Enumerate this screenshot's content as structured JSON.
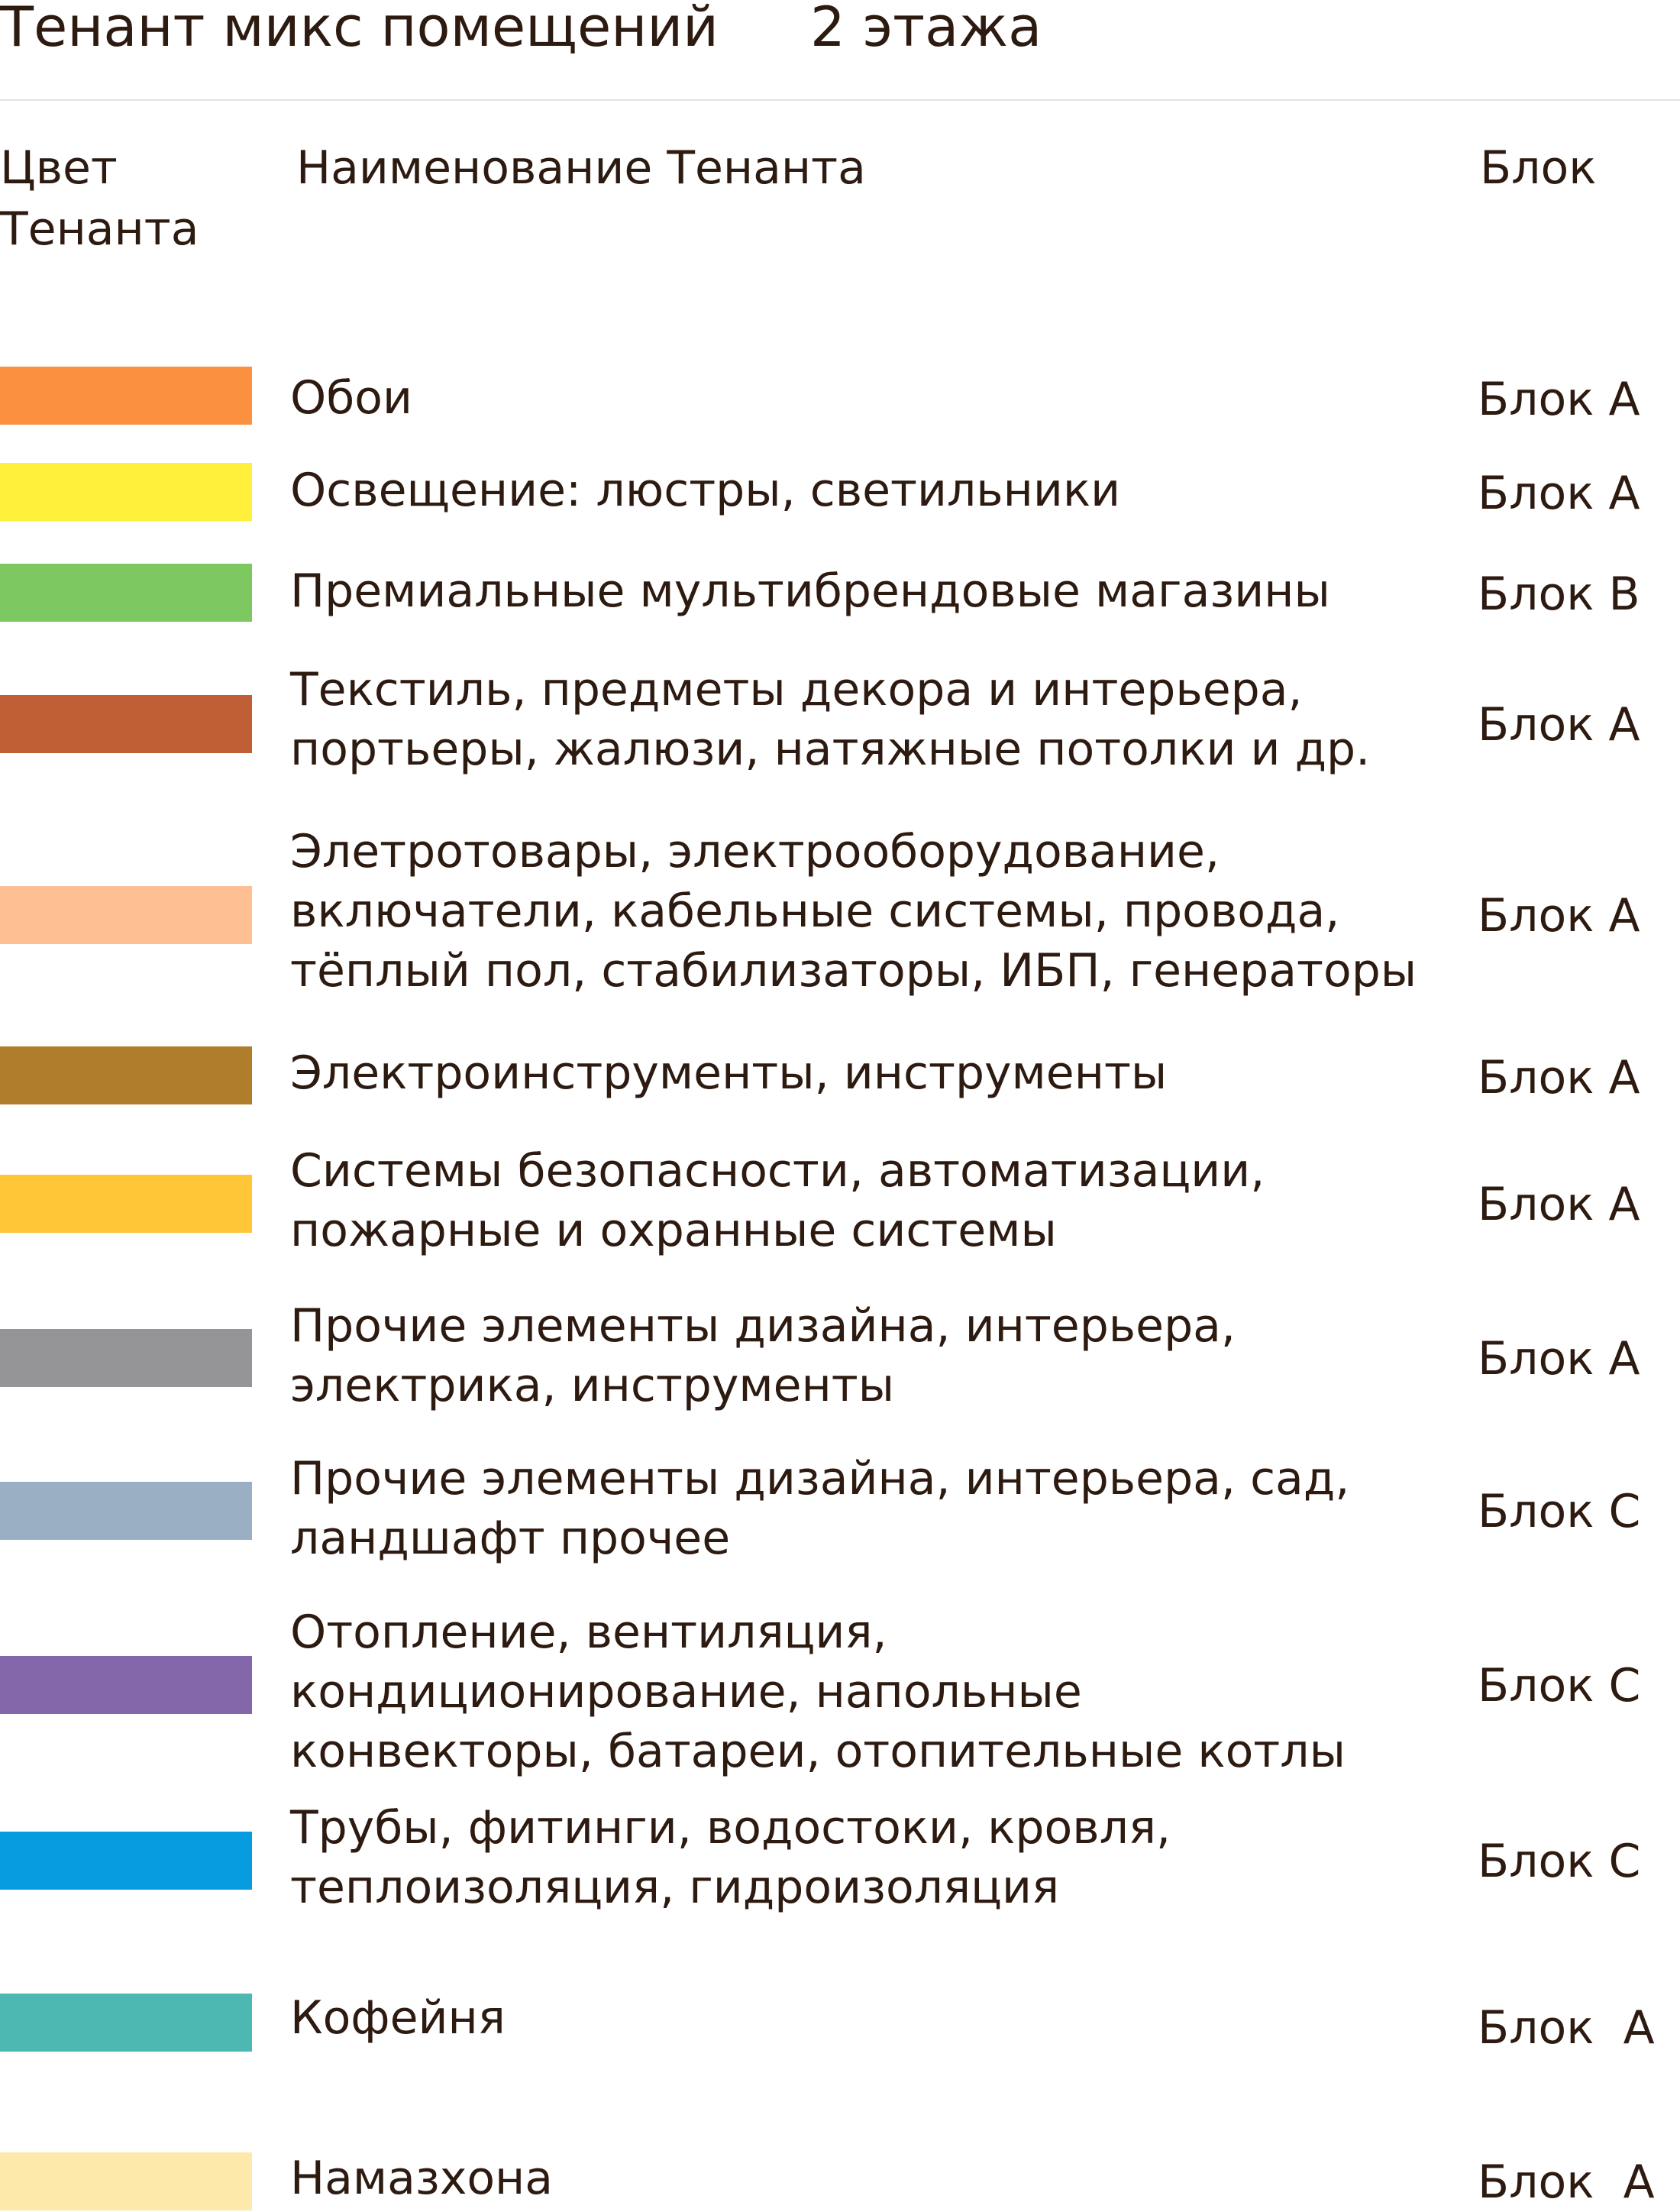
{
  "title": "Тенант микс помещений",
  "floor": "2 этажа",
  "headers": {
    "color": "Цвет Тенанта",
    "name": "Наименование Тенанта",
    "block": "Блок"
  },
  "tenants": [
    {
      "name": "Обои",
      "block": "Блок А",
      "color": "#fb913f"
    },
    {
      "name": "Освещение: люстры, светильники",
      "block": "Блок А",
      "color": "#fff03b"
    },
    {
      "name": "Премиальные мультибрендовые магазины",
      "block": "Блок В",
      "color": "#7ec862"
    },
    {
      "name": "Текстиль, предметы декора и интерьера,\nпортьеры, жалюзи, натяжные потолки и др.",
      "block": "Блок А",
      "color": "#c05e35"
    },
    {
      "name": "Элетротовары, электрооборудование,\nвключатели, кабельные системы, провода,\nтёплый пол, стабилизаторы, ИБП, генераторы",
      "block": "Блок А",
      "color": "#febf93"
    },
    {
      "name": "Электроинструменты, инструменты",
      "block": "Блок А",
      "color": "#b07d2d"
    },
    {
      "name": "Системы безопасности, автоматизации,\nпожарные и охранные системы",
      "block": "Блок А",
      "color": "#ffc737"
    },
    {
      "name": "Прочие элементы дизайна, интерьера,\nэлектрика, инструменты",
      "block": "Блок А",
      "color": "#959598"
    },
    {
      "name": "Прочие элементы дизайна, интерьера, сад,\nландшафт прочее",
      "block": "Блок С",
      "color": "#9aaec4"
    },
    {
      "name": "Отопление, вентиляция,\nкондиционирование, напольные\nконвекторы, батареи, отопительные котлы",
      "block": "Блок С",
      "color": "#8466ab"
    },
    {
      "name": "Трубы, фитинги, водостоки, кровля,\nтеплоизоляция, гидроизоляция",
      "block": "Блок С",
      "color": "#079ce0"
    },
    {
      "name": "Кофейня",
      "block": "Блок  А",
      "color": "#4db8b2"
    },
    {
      "name": "Намазхона",
      "block": "Блок  А",
      "color": "#fde9a9"
    }
  ]
}
